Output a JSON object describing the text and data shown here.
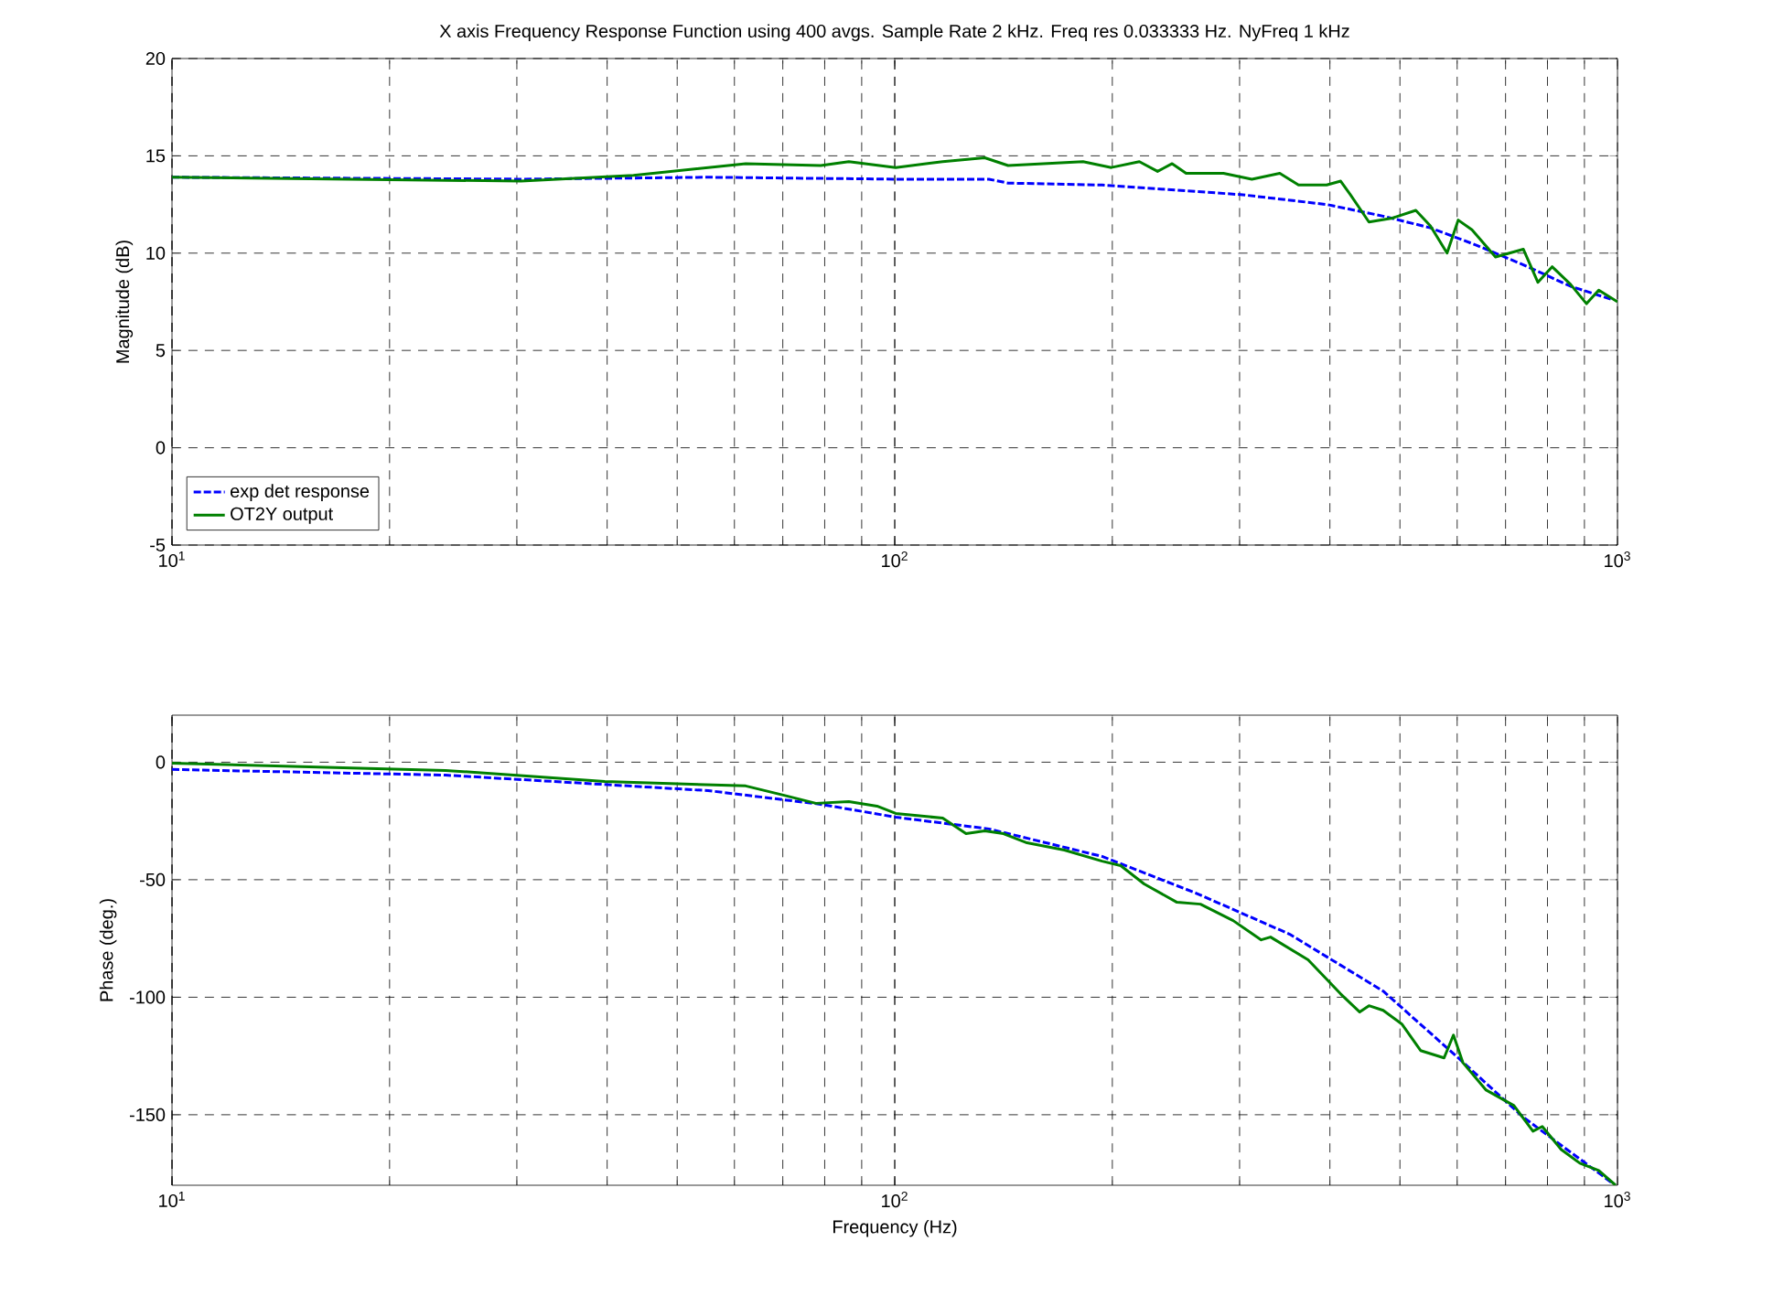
{
  "chart_data": [
    {
      "type": "line",
      "title": "X axis Frequency Response Function using  400 avgs. Sample Rate  2 kHz.  Freq res 0.033333 Hz.  NyFreq 1 kHz",
      "ylabel": "Magnitude (dB)",
      "log": "x",
      "grid": true,
      "legend": "bottom left",
      "xlim": [
        10,
        1000
      ],
      "xticks": [
        {
          "value": 10,
          "label": "10$^{1}$"
        },
        {
          "value": 100,
          "label": "10$^{2}$"
        },
        {
          "value": 1000,
          "label": "10$^{3}$"
        }
      ],
      "ylim": [
        -5,
        20
      ],
      "yticks": [
        -5,
        0,
        5,
        10,
        15,
        20
      ],
      "series": [
        {
          "name": "exp det response",
          "color": "#0000ff",
          "line_style": "dashed",
          "x": [
            10,
            30.4,
            55.2,
            100,
            135,
            143.5,
            193.6,
            303,
            396,
            474,
            551,
            639,
            741,
            861,
            985
          ],
          "values": [
            13.9,
            13.8,
            13.9,
            13.8,
            13.8,
            13.6,
            13.5,
            13.0,
            12.5,
            11.9,
            11.3,
            10.4,
            9.4,
            8.3,
            7.6
          ]
        },
        {
          "name": "OT2Y output",
          "color": "#008000",
          "line_style": "solid",
          "x": [
            10,
            30.4,
            43.5,
            62.2,
            79.0,
            86.4,
            100.3,
            116.5,
            133.2,
            143.5,
            182.2,
            199.4,
            218,
            231,
            242,
            253,
            285,
            312,
            341,
            362,
            396,
            414,
            427,
            453,
            488,
            526,
            551,
            581,
            602,
            629,
            678,
            741,
            776,
            812,
            861,
            906,
            942,
            1000
          ],
          "values": [
            13.9,
            13.7,
            14.0,
            14.6,
            14.5,
            14.7,
            14.4,
            14.7,
            14.9,
            14.5,
            14.7,
            14.4,
            14.7,
            14.2,
            14.6,
            14.1,
            14.1,
            13.8,
            14.1,
            13.5,
            13.5,
            13.7,
            13.0,
            11.6,
            11.8,
            12.2,
            11.4,
            10.0,
            11.7,
            11.2,
            9.8,
            10.2,
            8.5,
            9.3,
            8.4,
            7.4,
            8.1,
            7.5
          ]
        }
      ]
    },
    {
      "type": "line",
      "xlabel": "Frequency (Hz)",
      "ylabel": "Phase (deg.)",
      "log": "x",
      "grid": true,
      "xlim": [
        10,
        1000
      ],
      "xticks": [
        {
          "value": 10,
          "label": "10$^{1}$"
        },
        {
          "value": 100,
          "label": "10$^{2}$"
        },
        {
          "value": 1000,
          "label": "10$^{3}$"
        }
      ],
      "ylim": [
        -180,
        20
      ],
      "yticks": [
        -150,
        -100,
        -50,
        0
      ],
      "series": [
        {
          "color": "#0000ff",
          "line_style": "dashed",
          "x": [
            10,
            23.9,
            55.2,
            79.0,
            100.3,
            135,
            193.6,
            261,
            352,
            474,
            602,
            741,
            985
          ],
          "values": [
            -3.1,
            -5.5,
            -12.1,
            -17.9,
            -23.4,
            -28.4,
            -40.1,
            -55.7,
            -73.2,
            -97.4,
            -125.8,
            -151.1,
            -179.2
          ]
        },
        {
          "color": "#008000",
          "line_style": "solid",
          "x": [
            10,
            23.9,
            39.7,
            62.2,
            70.1,
            77.8,
            86.4,
            94.5,
            100.3,
            116.5,
            125.5,
            133.2,
            141.4,
            152.4,
            171.7,
            193.6,
            205.4,
            221.3,
            245.7,
            264.8,
            293.9,
            321.4,
            331.1,
            373.2,
            414,
            439.9,
            453,
            474,
            503,
            534,
            575.5,
            593,
            611,
            658,
            719,
            764,
            787,
            836,
            887,
            942,
            994
          ],
          "values": [
            -0.4,
            -3.5,
            -8.2,
            -10.1,
            -14.0,
            -17.5,
            -16.8,
            -18.7,
            -21.8,
            -23.8,
            -30.4,
            -29.2,
            -30.4,
            -34.3,
            -37.4,
            -42.1,
            -44.0,
            -51.8,
            -59.6,
            -60.4,
            -67.4,
            -75.6,
            -74.4,
            -84.1,
            -98.6,
            -106.3,
            -103.6,
            -105.6,
            -111.4,
            -122.7,
            -125.8,
            -116.1,
            -127.8,
            -139.5,
            -146.1,
            -157.0,
            -155.0,
            -164.8,
            -170.6,
            -173.7,
            -180
          ]
        }
      ]
    }
  ]
}
